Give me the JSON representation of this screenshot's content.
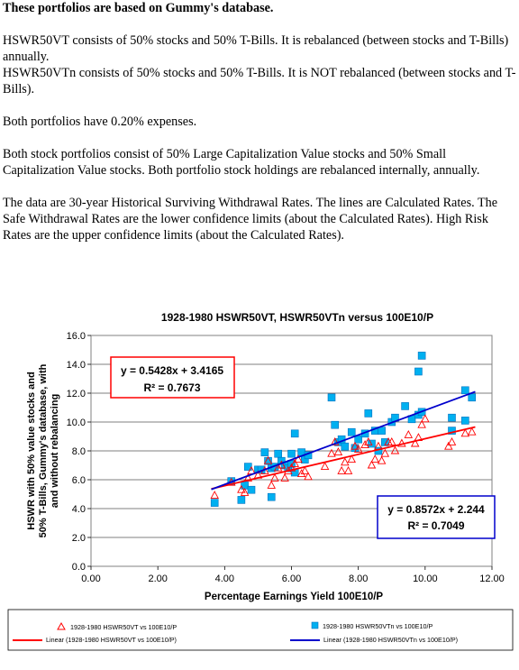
{
  "document": {
    "heading": "These portfolios are based on Gummy's database.",
    "p1": "HSWR50VT consists of 50% stocks and 50% T-Bills. It is rebalanced (between stocks and T-Bills) annually.",
    "p2": "HSWR50VTn consists of 50% stocks and 50% T-Bills. It is NOT rebalanced (between stocks and T-Bills).",
    "p3": "Both portfolios have 0.20% expenses.",
    "p4": "Both stock portfolios consist of 50% Large Capitalization Value stocks and 50% Small Capitalization Value stocks. Both portfolio stock holdings are rebalanced internally, annually.",
    "p5": "The data are 30-year Historical Surviving Withdrawal Rates. The lines are Calculated Rates. The Safe Withdrawal Rates are the lower confidence limits (about the Calculated Rates). High Risk Rates are the upper confidence limits (about the Calculated Rates)."
  },
  "chart_data": {
    "type": "scatter",
    "title": "1928-1980 HSWR50VT, HSWR50VTn versus 100E10/P",
    "xlabel": "Percentage Earnings Yield 100E10/P",
    "ylabel": "HSWR with 50% value stocks and 50% T-Bills, Gummy's database, with and without rebalancing",
    "xlim": [
      0,
      12
    ],
    "ylim": [
      0,
      16
    ],
    "xticks": [
      "0.00",
      "2.00",
      "4.00",
      "6.00",
      "8.00",
      "10.00",
      "12.00"
    ],
    "yticks": [
      "0.0",
      "2.0",
      "4.0",
      "6.0",
      "8.0",
      "10.0",
      "12.0",
      "14.0",
      "16.0"
    ],
    "grid": "horizontal",
    "legend_position": "bottom",
    "series": [
      {
        "name": "1928-1980 HSWR50VT vs 100E10/P",
        "marker": "triangle",
        "color": "#ff0000",
        "points": [
          [
            3.7,
            4.9
          ],
          [
            4.2,
            5.8
          ],
          [
            4.5,
            5.3
          ],
          [
            4.6,
            5.1
          ],
          [
            4.7,
            6.1
          ],
          [
            4.8,
            6.6
          ],
          [
            5.0,
            6.3
          ],
          [
            5.2,
            6.6
          ],
          [
            5.3,
            7.3
          ],
          [
            5.4,
            5.6
          ],
          [
            5.5,
            6.1
          ],
          [
            5.6,
            6.8
          ],
          [
            5.7,
            7.0
          ],
          [
            5.8,
            6.1
          ],
          [
            5.9,
            6.6
          ],
          [
            6.0,
            6.8
          ],
          [
            6.1,
            7.1
          ],
          [
            6.2,
            7.4
          ],
          [
            6.3,
            6.4
          ],
          [
            6.4,
            6.6
          ],
          [
            6.5,
            6.2
          ],
          [
            7.0,
            6.9
          ],
          [
            7.2,
            7.8
          ],
          [
            7.3,
            8.6
          ],
          [
            7.4,
            7.9
          ],
          [
            7.5,
            6.6
          ],
          [
            7.6,
            7.2
          ],
          [
            7.7,
            6.6
          ],
          [
            7.8,
            7.4
          ],
          [
            7.9,
            8.3
          ],
          [
            8.0,
            8.1
          ],
          [
            8.2,
            8.4
          ],
          [
            8.3,
            8.6
          ],
          [
            8.4,
            7.0
          ],
          [
            8.5,
            7.4
          ],
          [
            8.6,
            8.3
          ],
          [
            8.7,
            7.3
          ],
          [
            8.8,
            7.8
          ],
          [
            8.9,
            8.6
          ],
          [
            9.0,
            8.6
          ],
          [
            9.1,
            8.0
          ],
          [
            9.3,
            8.5
          ],
          [
            9.5,
            9.1
          ],
          [
            9.7,
            8.5
          ],
          [
            9.8,
            8.9
          ],
          [
            9.9,
            9.8
          ],
          [
            10.0,
            10.2
          ],
          [
            10.7,
            8.3
          ],
          [
            10.8,
            8.6
          ],
          [
            11.2,
            9.2
          ],
          [
            11.4,
            9.3
          ]
        ]
      },
      {
        "name": "1928-1980 HSWR50VTn vs 100E10/P",
        "marker": "square",
        "color": "#00b0f0",
        "points": [
          [
            3.7,
            4.4
          ],
          [
            4.2,
            5.9
          ],
          [
            4.5,
            4.6
          ],
          [
            4.6,
            5.6
          ],
          [
            4.7,
            6.9
          ],
          [
            4.8,
            5.3
          ],
          [
            5.0,
            6.7
          ],
          [
            5.1,
            6.7
          ],
          [
            5.2,
            7.9
          ],
          [
            5.3,
            7.3
          ],
          [
            5.4,
            4.8
          ],
          [
            5.4,
            6.8
          ],
          [
            5.5,
            6.9
          ],
          [
            5.6,
            7.8
          ],
          [
            5.7,
            7.3
          ],
          [
            5.8,
            7.0
          ],
          [
            5.9,
            6.8
          ],
          [
            6.0,
            7.8
          ],
          [
            6.0,
            7.1
          ],
          [
            6.1,
            6.5
          ],
          [
            6.1,
            9.2
          ],
          [
            6.3,
            7.9
          ],
          [
            6.4,
            7.4
          ],
          [
            6.5,
            7.7
          ],
          [
            7.2,
            11.7
          ],
          [
            7.3,
            9.8
          ],
          [
            7.4,
            8.6
          ],
          [
            7.5,
            8.8
          ],
          [
            7.6,
            8.3
          ],
          [
            7.8,
            9.3
          ],
          [
            7.9,
            8.2
          ],
          [
            8.0,
            8.8
          ],
          [
            8.2,
            9.2
          ],
          [
            8.3,
            10.6
          ],
          [
            8.4,
            8.5
          ],
          [
            8.5,
            9.4
          ],
          [
            8.6,
            8.0
          ],
          [
            8.7,
            9.4
          ],
          [
            8.8,
            8.6
          ],
          [
            9.0,
            10.0
          ],
          [
            9.1,
            10.3
          ],
          [
            9.4,
            11.1
          ],
          [
            9.6,
            10.2
          ],
          [
            9.8,
            10.5
          ],
          [
            9.8,
            13.5
          ],
          [
            9.9,
            14.6
          ],
          [
            9.9,
            10.7
          ],
          [
            10.8,
            10.3
          ],
          [
            10.8,
            9.4
          ],
          [
            11.2,
            10.1
          ],
          [
            11.2,
            12.2
          ],
          [
            11.4,
            11.7
          ]
        ]
      }
    ],
    "trendlines": [
      {
        "name": "Linear (1928-1980 HSWR50VT vs 100E10/P)",
        "color": "#ff0000",
        "slope": 0.5428,
        "intercept": 3.4165,
        "x_range": [
          3.6,
          11.5
        ],
        "equation": "y = 0.5428x + 3.4165",
        "r2": "R² = 0.7673",
        "box_color": "#ff0000"
      },
      {
        "name": "Linear (1928-1980 HSWR50VTn vs 100E10/P)",
        "color": "#0000cc",
        "slope": 0.8572,
        "intercept": 2.244,
        "x_range": [
          3.6,
          11.5
        ],
        "equation": "y = 0.8572x + 2.244",
        "r2": "R² = 0.7049",
        "box_color": "#0000cc"
      }
    ]
  }
}
